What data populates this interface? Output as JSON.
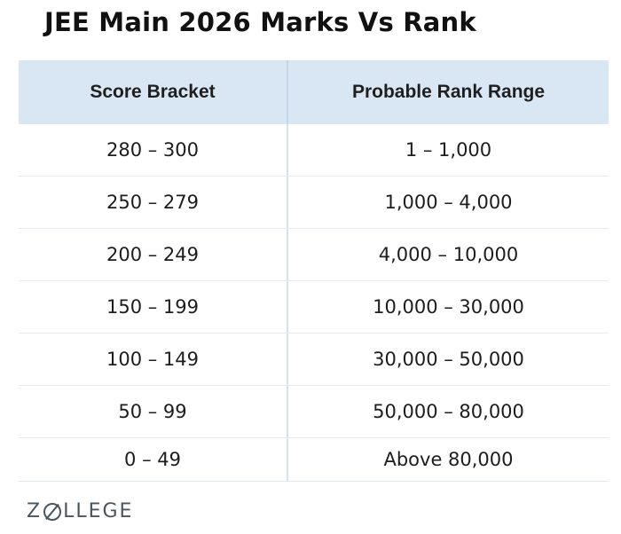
{
  "title": "JEE Main 2026 Marks Vs Rank",
  "table": {
    "headers": [
      "Score Bracket",
      "Probable Rank Range"
    ],
    "rows": [
      [
        "280 – 300",
        "1 – 1,000"
      ],
      [
        "250 – 279",
        "1,000 – 4,000"
      ],
      [
        "200 – 249",
        "4,000 – 10,000"
      ],
      [
        "150 – 199",
        "10,000 – 30,000"
      ],
      [
        "100 – 149",
        "30,000 – 50,000"
      ],
      [
        "50 – 99",
        "50,000 – 80,000"
      ],
      [
        "0 – 49",
        "Above 80,000"
      ]
    ]
  },
  "logo": {
    "text": "ZOLLEGE",
    "part1": "Z",
    "part2": "LLEGE"
  },
  "colors": {
    "header_bg": "#d9e7f4",
    "logo": "#4a5560"
  }
}
